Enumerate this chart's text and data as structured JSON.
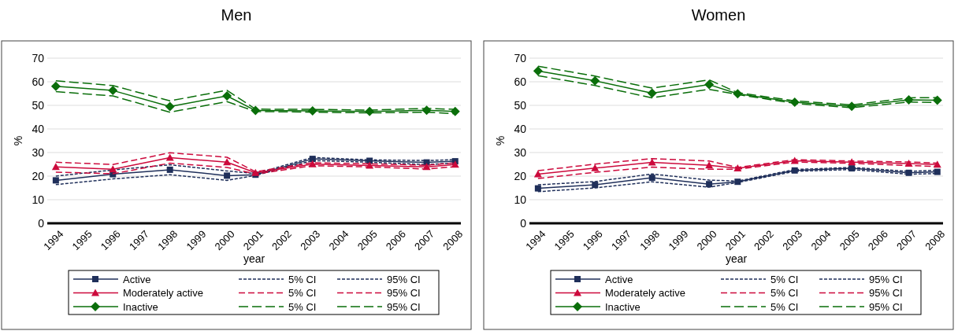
{
  "chart_data": [
    {
      "type": "line",
      "title": "Men",
      "xlabel": "year",
      "ylabel": "%",
      "x": [
        1994,
        1996,
        1998,
        2000,
        2001,
        2003,
        2005,
        2007,
        2008
      ],
      "xlim": [
        1993.7,
        2008.2
      ],
      "xticks": [
        1994,
        1995,
        1996,
        1997,
        1998,
        1999,
        2000,
        2001,
        2002,
        2003,
        2004,
        2005,
        2006,
        2007,
        2008
      ],
      "ylim": [
        0,
        70
      ],
      "yticks": [
        0,
        10,
        20,
        30,
        40,
        50,
        60,
        70
      ],
      "grid": "y",
      "legend": "bottom",
      "series": [
        {
          "name": "Active",
          "color": "#1f2f5a",
          "marker": "square",
          "line_style": "solid",
          "values": [
            18.2,
            20.8,
            22.7,
            20.2,
            20.6,
            27.3,
            26.5,
            25.8,
            26.3
          ]
        },
        {
          "name": "5% CI",
          "color": "#1f2f5a",
          "marker": "none",
          "line_style": "dashed",
          "values": [
            16.4,
            18.8,
            20.6,
            18.2,
            20.3,
            26.6,
            25.9,
            24.9,
            25.6
          ]
        },
        {
          "name": "95% CI",
          "color": "#1f2f5a",
          "marker": "none",
          "line_style": "dashed",
          "values": [
            20.0,
            22.6,
            24.8,
            22.2,
            21.1,
            27.9,
            26.9,
            26.6,
            27.0
          ]
        },
        {
          "name": "Moderately active",
          "color": "#cc0a3c",
          "marker": "triangle",
          "line_style": "solid",
          "values": [
            23.9,
            22.9,
            27.8,
            25.9,
            21.4,
            25.1,
            24.5,
            23.9,
            24.9
          ]
        },
        {
          "name": "5% CI",
          "color": "#cc0a3c",
          "marker": "none",
          "line_style": "dashed",
          "values": [
            21.7,
            21.0,
            25.5,
            23.7,
            20.9,
            24.4,
            23.9,
            23.0,
            24.0
          ]
        },
        {
          "name": "95% CI",
          "color": "#cc0a3c",
          "marker": "none",
          "line_style": "dashed",
          "values": [
            25.9,
            24.9,
            29.9,
            28.0,
            21.9,
            25.7,
            25.2,
            24.6,
            25.6
          ]
        },
        {
          "name": "Inactive",
          "color": "#0a6e0a",
          "marker": "diamond",
          "line_style": "solid",
          "values": [
            58.1,
            56.3,
            49.5,
            54.0,
            47.8,
            47.7,
            47.4,
            47.9,
            47.4
          ]
        },
        {
          "name": "5% CI",
          "color": "#0a6e0a",
          "marker": "none",
          "line_style": "dashed",
          "values": [
            55.8,
            54.0,
            47.1,
            51.6,
            47.4,
            47.1,
            46.8,
            47.1,
            46.4
          ]
        },
        {
          "name": "95% CI",
          "color": "#0a6e0a",
          "marker": "none",
          "line_style": "dashed",
          "values": [
            60.4,
            58.4,
            51.9,
            56.4,
            48.4,
            48.3,
            48.0,
            48.7,
            48.3
          ]
        }
      ]
    },
    {
      "type": "line",
      "title": "Women",
      "xlabel": "year",
      "ylabel": "%",
      "x": [
        1994,
        1996,
        1998,
        2000,
        2001,
        2003,
        2005,
        2007,
        2008
      ],
      "xlim": [
        1993.7,
        2008.2
      ],
      "xticks": [
        1994,
        1995,
        1996,
        1997,
        1998,
        1999,
        2000,
        2001,
        2002,
        2003,
        2004,
        2005,
        2006,
        2007,
        2008
      ],
      "ylim": [
        0,
        70
      ],
      "yticks": [
        0,
        10,
        20,
        30,
        40,
        50,
        60,
        70
      ],
      "grid": "y",
      "legend": "bottom",
      "series": [
        {
          "name": "Active",
          "color": "#1f2f5a",
          "marker": "square",
          "line_style": "solid",
          "values": [
            14.8,
            16.3,
            19.3,
            16.6,
            17.6,
            22.4,
            23.3,
            21.4,
            21.8
          ]
        },
        {
          "name": "5% CI",
          "color": "#1f2f5a",
          "marker": "none",
          "line_style": "dashed",
          "values": [
            13.4,
            15.0,
            17.6,
            15.3,
            17.3,
            22.0,
            22.8,
            20.8,
            21.1
          ]
        },
        {
          "name": "95% CI",
          "color": "#1f2f5a",
          "marker": "none",
          "line_style": "dashed",
          "values": [
            16.3,
            17.7,
            20.9,
            18.3,
            17.9,
            22.8,
            23.7,
            22.0,
            22.5
          ]
        },
        {
          "name": "Moderately active",
          "color": "#cc0a3c",
          "marker": "triangle",
          "line_style": "solid",
          "values": [
            20.8,
            23.4,
            25.8,
            24.6,
            23.3,
            26.5,
            25.9,
            25.3,
            24.9
          ]
        },
        {
          "name": "5% CI",
          "color": "#cc0a3c",
          "marker": "none",
          "line_style": "dashed",
          "values": [
            19.0,
            21.6,
            23.8,
            22.9,
            22.9,
            26.0,
            25.4,
            24.5,
            24.1
          ]
        },
        {
          "name": "95% CI",
          "color": "#cc0a3c",
          "marker": "none",
          "line_style": "dashed",
          "values": [
            22.3,
            25.1,
            27.4,
            26.4,
            23.7,
            27.0,
            26.4,
            26.0,
            25.5
          ]
        },
        {
          "name": "Inactive",
          "color": "#0a6e0a",
          "marker": "diamond",
          "line_style": "solid",
          "values": [
            64.6,
            60.4,
            55.2,
            58.8,
            54.9,
            51.3,
            49.6,
            52.3,
            52.2
          ]
        },
        {
          "name": "5% CI",
          "color": "#0a6e0a",
          "marker": "none",
          "line_style": "dashed",
          "values": [
            62.6,
            58.4,
            53.2,
            56.8,
            54.6,
            50.8,
            49.0,
            51.4,
            51.2
          ]
        },
        {
          "name": "95% CI",
          "color": "#0a6e0a",
          "marker": "none",
          "line_style": "dashed",
          "values": [
            66.6,
            62.4,
            57.3,
            60.8,
            55.4,
            51.9,
            50.2,
            53.2,
            53.3
          ]
        }
      ]
    }
  ]
}
